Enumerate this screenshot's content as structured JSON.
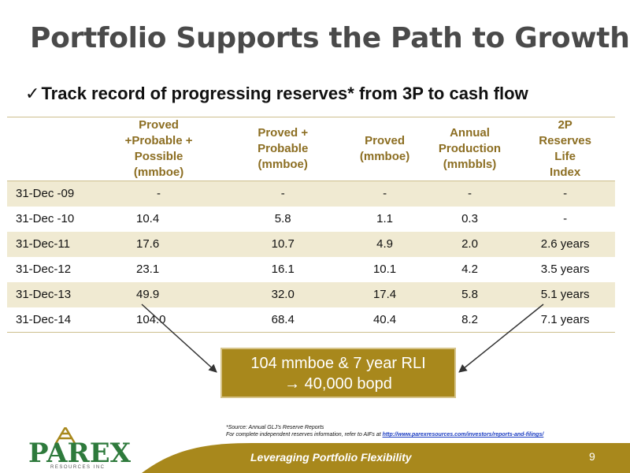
{
  "slide": {
    "title": "Portfolio Supports the Path to Growth",
    "subtitle_check": "✓",
    "subtitle": "Track record of progressing reserves* from 3P to cash flow"
  },
  "table": {
    "headers": [
      "",
      "Proved +Probable + Possible (mmboe)",
      "Proved + Probable (mmboe)",
      "Proved (mmboe)",
      "Annual Production (mmbbls)",
      "2P Reserves Life Index"
    ],
    "rows": [
      [
        "31-Dec -09",
        "-",
        "-",
        "-",
        "-",
        "-"
      ],
      [
        "31-Dec -10",
        "10.4",
        "5.8",
        "1.1",
        "0.3",
        "-"
      ],
      [
        "31-Dec-11",
        "17.6",
        "10.7",
        "4.9",
        "2.0",
        "2.6 years"
      ],
      [
        "31-Dec-12",
        "23.1",
        "16.1",
        "10.1",
        "4.2",
        "3.5 years"
      ],
      [
        "31-Dec-13",
        "49.9",
        "32.0",
        "17.4",
        "5.8",
        "5.1 years"
      ],
      [
        "31-Dec-14",
        "104.0",
        "68.4",
        "40.4",
        "8.2",
        "7.1 years"
      ]
    ]
  },
  "callout": {
    "line1": "104 mmboe & 7 year RLI",
    "line2": "→ 40,000 bopd"
  },
  "source": {
    "line1": "*Source:  Annual GLJ's Reserve Reports",
    "line2_prefix": "For  complete independent reserves information, refer to AIFs at ",
    "link": "http://www.parexresources.com/investors/reports-and-filings/"
  },
  "logo": {
    "name": "PAREX",
    "sub": "RESOURCES INC"
  },
  "footer": {
    "tagline": "Leveraging Portfolio Flexibility",
    "page_number": "9"
  },
  "colors": {
    "gold": "#a8881c",
    "header_text": "#8c6e22",
    "row_shade": "#f0ead2",
    "logo_green": "#2e7a3c"
  }
}
